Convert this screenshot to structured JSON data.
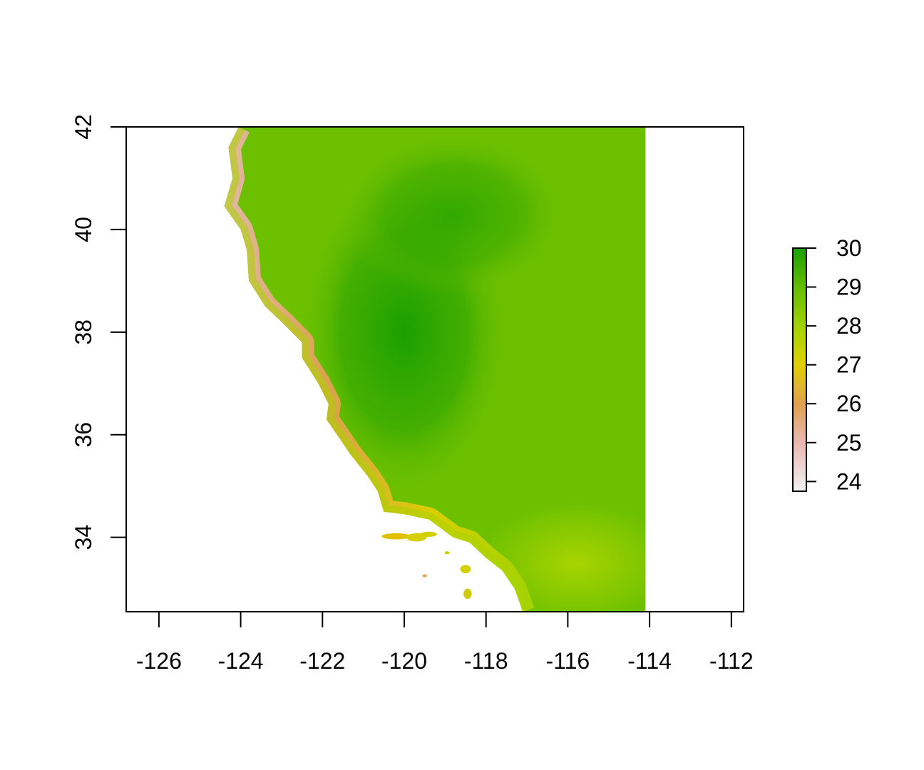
{
  "chart_data": {
    "type": "heatmap",
    "title": "",
    "xlabel": "",
    "ylabel": "",
    "xlim": [
      -126.8,
      -111.7
    ],
    "ylim": [
      32.55,
      42.0
    ],
    "x_ticks": [
      "-126",
      "-124",
      "-122",
      "-120",
      "-118",
      "-116",
      "-114",
      "-112"
    ],
    "x_tick_values": [
      -126,
      -124,
      -122,
      -120,
      -118,
      -116,
      -114,
      -112
    ],
    "y_ticks": [
      "34",
      "36",
      "38",
      "40",
      "42"
    ],
    "y_tick_values": [
      34,
      36,
      38,
      40,
      42
    ],
    "raster_extent": {
      "lon": [
        -124.4,
        -114.1
      ],
      "lat": [
        32.55,
        42.0
      ]
    },
    "legend": {
      "placement": "right",
      "range": [
        23.75,
        30.0
      ],
      "ticks": [
        "30",
        "29",
        "28",
        "27",
        "26",
        "25",
        "24"
      ],
      "tick_values": [
        30,
        29,
        28,
        27,
        26,
        25,
        24
      ],
      "colors": {
        "low": "#f2f2f2",
        "pink": "#e8b8b0",
        "orange": "#e0a050",
        "yellow": "#e0d000",
        "yellowgreen": "#a8d400",
        "green": "#6cc000",
        "high": "#1aa000"
      }
    }
  }
}
